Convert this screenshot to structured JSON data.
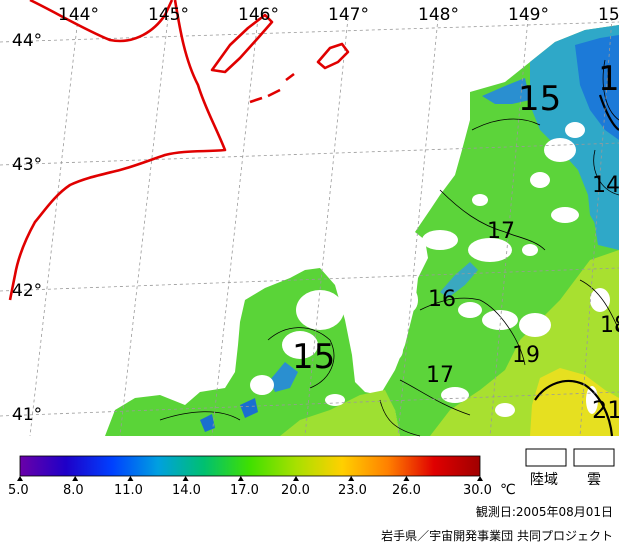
{
  "map": {
    "lon_labels": [
      "144°",
      "145°",
      "146°",
      "147°",
      "148°",
      "149°",
      "15"
    ],
    "lat_labels": [
      "44°",
      "43°",
      "42°",
      "41°"
    ],
    "contour_labels": [
      "15",
      "15",
      "1",
      "14",
      "17",
      "16",
      "17",
      "19",
      "18",
      "21"
    ]
  },
  "colorbar": {
    "ticks": [
      "5.0",
      "8.0",
      "11.0",
      "14.0",
      "17.0",
      "20.0",
      "23.0",
      "26.0",
      "30.0"
    ],
    "unit": "℃",
    "stops": [
      "#6a00a8",
      "#1e00c8",
      "#0040ff",
      "#00a0e0",
      "#00c070",
      "#40e000",
      "#a8e000",
      "#ffd000",
      "#ff8000",
      "#e00000",
      "#a00000"
    ]
  },
  "legend": {
    "land_label": "陸域",
    "cloud_label": "雲"
  },
  "footer": {
    "observation": "観測日:2005年08月01日",
    "credit": "岩手県／宇宙開発事業団 共同プロジェクト"
  },
  "colors": {
    "coastline": "#e00000",
    "grid": "#9a9a9a"
  }
}
